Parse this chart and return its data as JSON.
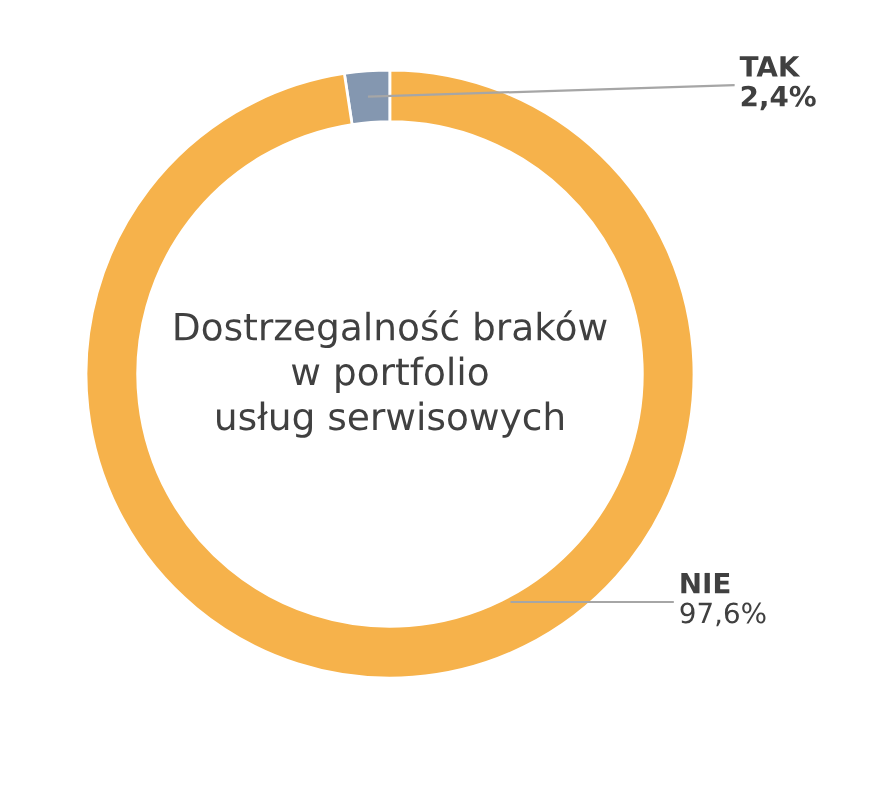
{
  "chart_data": {
    "type": "donut",
    "title": "Dostrzegalność braków\nw portfolio\nusług serwisowych",
    "categories": [
      "TAK",
      "NIE"
    ],
    "values": [
      2.4,
      97.6
    ],
    "colors": [
      "#8497b0",
      "#f6b24b"
    ],
    "value_labels": [
      "2,4%",
      "97,6%"
    ],
    "legend": false
  }
}
